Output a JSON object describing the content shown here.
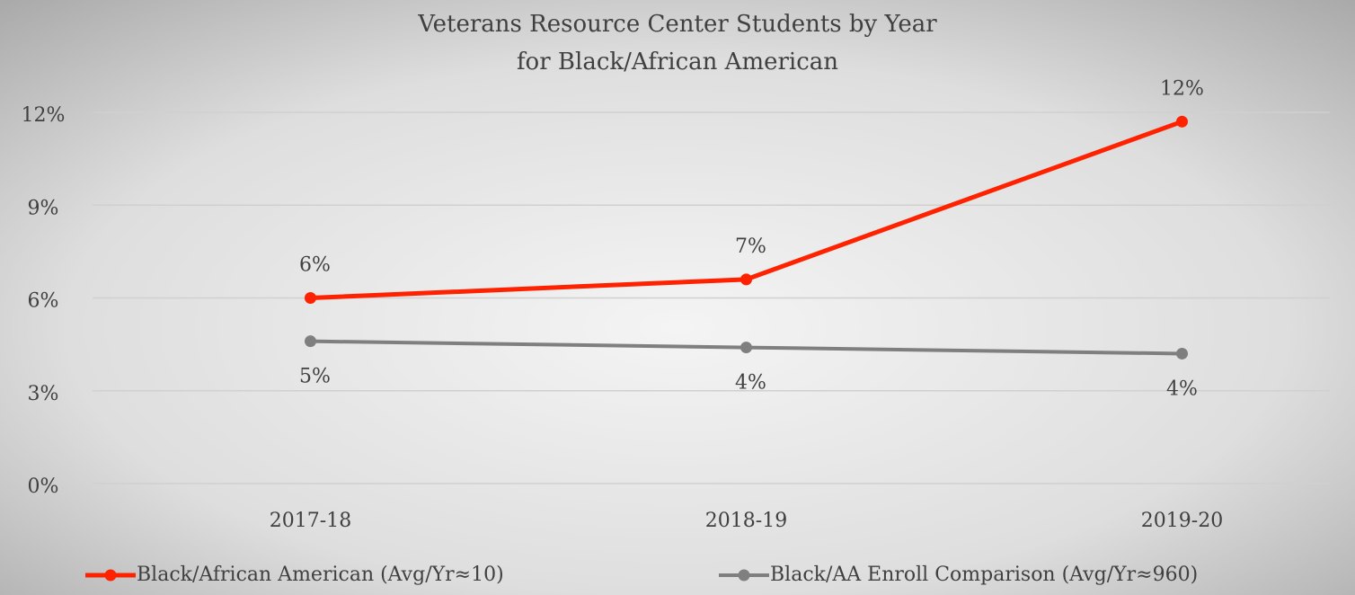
{
  "chart_data": {
    "type": "line",
    "title": "Veterans Resource Center Students by Year",
    "subtitle": "for Black/African American",
    "categories": [
      "2017-18",
      "2018-19",
      "2019-20"
    ],
    "series": [
      {
        "name": "Black/African American (Avg/Yr≈10)",
        "color": "#ff2200",
        "values": [
          6.0,
          6.6,
          11.7
        ],
        "value_labels": [
          "6%",
          "7%",
          "12%"
        ]
      },
      {
        "name": "Black/AA Enroll Comparison (Avg/Yr≈960)",
        "color": "#7f7f7f",
        "values": [
          4.6,
          4.4,
          4.2
        ],
        "value_labels": [
          "5%",
          "4%",
          "4%"
        ]
      }
    ],
    "ylim": [
      0,
      12
    ],
    "yticks": [
      {
        "value": 0,
        "label": "0%"
      },
      {
        "value": 3,
        "label": "3%"
      },
      {
        "value": 6,
        "label": "6%"
      },
      {
        "value": 9,
        "label": "9%"
      },
      {
        "value": 12,
        "label": "12%"
      }
    ],
    "grid": true,
    "legend": "bottom"
  }
}
